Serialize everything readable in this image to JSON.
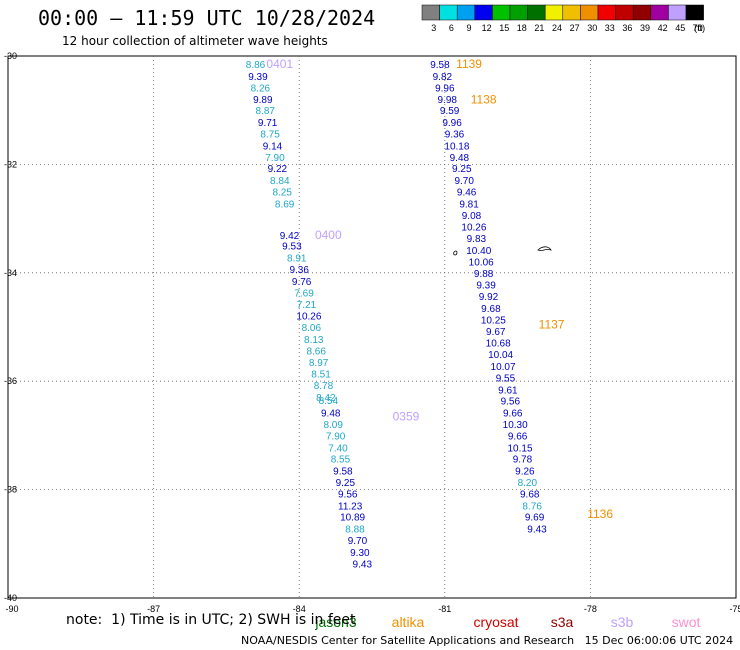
{
  "header": {
    "title": "00:00 – 11:59 UTC 10/28/2024",
    "subtitle": "12 hour collection of altimeter wave heights"
  },
  "color_scale": {
    "labels": [
      "3",
      "6",
      "9",
      "12",
      "15",
      "18",
      "21",
      "24",
      "27",
      "30",
      "33",
      "36",
      "39",
      "42",
      "45",
      "70"
    ],
    "unit": "(ft)",
    "colors": [
      "#808080",
      "#00e0e0",
      "#00a0f0",
      "#0000f0",
      "#00c000",
      "#00a000",
      "#007000",
      "#f0f000",
      "#f0c000",
      "#f09000",
      "#f00000",
      "#c00000",
      "#900000",
      "#a000a0",
      "#c0a0ff",
      "#000000"
    ]
  },
  "footer": {
    "note": "note:  1) Time is in UTC; 2) SWH is in feet",
    "credit": "NOAA/NESDIS Center for Satellite Applications and Research   15 Dec 06:00:06 UTC 2024"
  },
  "legend": [
    {
      "name": "jason3",
      "color": "#007000"
    },
    {
      "name": "altika",
      "color": "#f09000"
    },
    {
      "name": "cryosat",
      "color": "#d00000"
    },
    {
      "name": "s3a",
      "color": "#900000"
    },
    {
      "name": "s3b",
      "color": "#c0a0ff"
    },
    {
      "name": "swot",
      "color": "#ff90d0"
    }
  ],
  "chart_data": {
    "type": "scatter",
    "xlim": [
      -90,
      -75
    ],
    "ylim": [
      -40,
      -30
    ],
    "x_ticks": [
      -87,
      -84,
      -81,
      -78,
      -75
    ],
    "x_tick_labels": [
      "-87",
      "-84",
      "-81",
      "-78",
      "-75"
    ],
    "y_ticks": [
      -30,
      -32,
      -34,
      -36,
      -38,
      -40
    ],
    "y_tick_labels": [
      "-30",
      "-32",
      "-34",
      "-36",
      "-38",
      "-40"
    ],
    "grid": true,
    "series": [
      {
        "name": "s3b",
        "color_label": "#c0a0ff",
        "labels": [
          {
            "lon": -84.4,
            "lat": -30.15,
            "text": "0401"
          },
          {
            "lon": -83.4,
            "lat": -33.3,
            "text": "0400"
          },
          {
            "lon": -81.8,
            "lat": -36.65,
            "text": "0359"
          }
        ],
        "points": [
          {
            "lon": -84.9,
            "lat": -30.15,
            "text": "8.86"
          },
          {
            "lon": -84.85,
            "lat": -30.37,
            "text": "9.39"
          },
          {
            "lon": -84.8,
            "lat": -30.58,
            "text": "8.26"
          },
          {
            "lon": -84.75,
            "lat": -30.79,
            "text": "9.89"
          },
          {
            "lon": -84.7,
            "lat": -31.0,
            "text": "8.87"
          },
          {
            "lon": -84.65,
            "lat": -31.22,
            "text": "9.71"
          },
          {
            "lon": -84.6,
            "lat": -31.43,
            "text": "8.75"
          },
          {
            "lon": -84.55,
            "lat": -31.65,
            "text": "9.14"
          },
          {
            "lon": -84.5,
            "lat": -31.86,
            "text": "7.90"
          },
          {
            "lon": -84.45,
            "lat": -32.07,
            "text": "9.22"
          },
          {
            "lon": -84.4,
            "lat": -32.29,
            "text": "8.84"
          },
          {
            "lon": -84.35,
            "lat": -32.5,
            "text": "8.25"
          },
          {
            "lon": -84.3,
            "lat": -32.72,
            "text": "8.69"
          },
          {
            "lon": -84.2,
            "lat": -33.3,
            "text": "9.42"
          },
          {
            "lon": -84.15,
            "lat": -33.5,
            "text": "9.53"
          },
          {
            "lon": -84.05,
            "lat": -33.72,
            "text": "8.91"
          },
          {
            "lon": -84.0,
            "lat": -33.93,
            "text": "9.36"
          },
          {
            "lon": -83.95,
            "lat": -34.15,
            "text": "9.76"
          },
          {
            "lon": -83.9,
            "lat": -34.36,
            "text": "7.69"
          },
          {
            "lon": -83.85,
            "lat": -34.58,
            "text": "7.21"
          },
          {
            "lon": -83.8,
            "lat": -34.79,
            "text": "10.26"
          },
          {
            "lon": -83.75,
            "lat": -35.0,
            "text": "8.06"
          },
          {
            "lon": -83.7,
            "lat": -35.22,
            "text": "8.13"
          },
          {
            "lon": -83.65,
            "lat": -35.43,
            "text": "8.66"
          },
          {
            "lon": -83.6,
            "lat": -35.65,
            "text": "8.97"
          },
          {
            "lon": -83.55,
            "lat": -35.86,
            "text": "8.51"
          },
          {
            "lon": -83.5,
            "lat": -36.07,
            "text": "8.78"
          },
          {
            "lon": -83.45,
            "lat": -36.29,
            "text": "8.42"
          },
          {
            "lon": -83.4,
            "lat": -36.35,
            "text": "8.54"
          },
          {
            "lon": -83.35,
            "lat": -36.58,
            "text": "9.48"
          },
          {
            "lon": -83.3,
            "lat": -36.79,
            "text": "8.09"
          },
          {
            "lon": -83.25,
            "lat": -37.0,
            "text": "7.90"
          },
          {
            "lon": -83.2,
            "lat": -37.22,
            "text": "7.40"
          },
          {
            "lon": -83.15,
            "lat": -37.43,
            "text": "8.55"
          },
          {
            "lon": -83.1,
            "lat": -37.65,
            "text": "9.58"
          },
          {
            "lon": -83.05,
            "lat": -37.86,
            "text": "9.25"
          },
          {
            "lon": -83.0,
            "lat": -38.07,
            "text": "9.56"
          },
          {
            "lon": -82.95,
            "lat": -38.29,
            "text": "11.23"
          },
          {
            "lon": -82.9,
            "lat": -38.5,
            "text": "10.89"
          },
          {
            "lon": -82.85,
            "lat": -38.72,
            "text": "8.88"
          },
          {
            "lon": -82.8,
            "lat": -38.93,
            "text": "9.70"
          },
          {
            "lon": -82.75,
            "lat": -39.15,
            "text": "9.30"
          },
          {
            "lon": -82.7,
            "lat": -39.36,
            "text": "9.43"
          }
        ]
      },
      {
        "name": "altika",
        "color_label": "#f09000",
        "labels": [
          {
            "lon": -80.5,
            "lat": -30.15,
            "text": "1139"
          },
          {
            "lon": -80.2,
            "lat": -30.8,
            "text": "1138"
          },
          {
            "lon": -78.8,
            "lat": -34.95,
            "text": "1137"
          },
          {
            "lon": -77.8,
            "lat": -38.45,
            "text": "1136"
          }
        ],
        "points": [
          {
            "lon": -81.1,
            "lat": -30.15,
            "text": "9.58"
          },
          {
            "lon": -81.05,
            "lat": -30.37,
            "text": "9.82"
          },
          {
            "lon": -81.0,
            "lat": -30.58,
            "text": "9.96"
          },
          {
            "lon": -80.95,
            "lat": -30.79,
            "text": "9.98"
          },
          {
            "lon": -80.9,
            "lat": -31.0,
            "text": "9.59"
          },
          {
            "lon": -80.85,
            "lat": -31.22,
            "text": "9.96"
          },
          {
            "lon": -80.8,
            "lat": -31.43,
            "text": "9.36"
          },
          {
            "lon": -80.75,
            "lat": -31.65,
            "text": "10.18"
          },
          {
            "lon": -80.7,
            "lat": -31.86,
            "text": "9.48"
          },
          {
            "lon": -80.65,
            "lat": -32.07,
            "text": "9.25"
          },
          {
            "lon": -80.6,
            "lat": -32.29,
            "text": "9.70"
          },
          {
            "lon": -80.55,
            "lat": -32.5,
            "text": "9.46"
          },
          {
            "lon": -80.5,
            "lat": -32.72,
            "text": "9.81"
          },
          {
            "lon": -80.45,
            "lat": -32.93,
            "text": "9.08"
          },
          {
            "lon": -80.4,
            "lat": -33.15,
            "text": "10.26"
          },
          {
            "lon": -80.35,
            "lat": -33.36,
            "text": "9.83"
          },
          {
            "lon": -80.3,
            "lat": -33.58,
            "text": "10.40"
          },
          {
            "lon": -80.25,
            "lat": -33.79,
            "text": "10.06"
          },
          {
            "lon": -80.2,
            "lat": -34.0,
            "text": "9.88"
          },
          {
            "lon": -80.15,
            "lat": -34.22,
            "text": "9.39"
          },
          {
            "lon": -80.1,
            "lat": -34.43,
            "text": "9.92"
          },
          {
            "lon": -80.05,
            "lat": -34.65,
            "text": "9.68"
          },
          {
            "lon": -80.0,
            "lat": -34.86,
            "text": "10.25"
          },
          {
            "lon": -79.95,
            "lat": -35.07,
            "text": "9.67"
          },
          {
            "lon": -79.9,
            "lat": -35.29,
            "text": "10.68"
          },
          {
            "lon": -79.85,
            "lat": -35.5,
            "text": "10.04"
          },
          {
            "lon": -79.8,
            "lat": -35.72,
            "text": "10.07"
          },
          {
            "lon": -79.75,
            "lat": -35.93,
            "text": "9.55"
          },
          {
            "lon": -79.7,
            "lat": -36.15,
            "text": "9.61"
          },
          {
            "lon": -79.65,
            "lat": -36.36,
            "text": "9.56"
          },
          {
            "lon": -79.6,
            "lat": -36.58,
            "text": "9.66"
          },
          {
            "lon": -79.55,
            "lat": -36.79,
            "text": "10.30"
          },
          {
            "lon": -79.5,
            "lat": -37.0,
            "text": "9.66"
          },
          {
            "lon": -79.45,
            "lat": -37.22,
            "text": "10.15"
          },
          {
            "lon": -79.4,
            "lat": -37.43,
            "text": "9.78"
          },
          {
            "lon": -79.35,
            "lat": -37.65,
            "text": "9.26"
          },
          {
            "lon": -79.3,
            "lat": -37.86,
            "text": "8.20"
          },
          {
            "lon": -79.25,
            "lat": -38.07,
            "text": "9.68"
          },
          {
            "lon": -79.2,
            "lat": -38.29,
            "text": "8.76"
          },
          {
            "lon": -79.15,
            "lat": -38.5,
            "text": "9.69"
          },
          {
            "lon": -79.1,
            "lat": -38.72,
            "text": "9.43"
          }
        ]
      }
    ]
  }
}
